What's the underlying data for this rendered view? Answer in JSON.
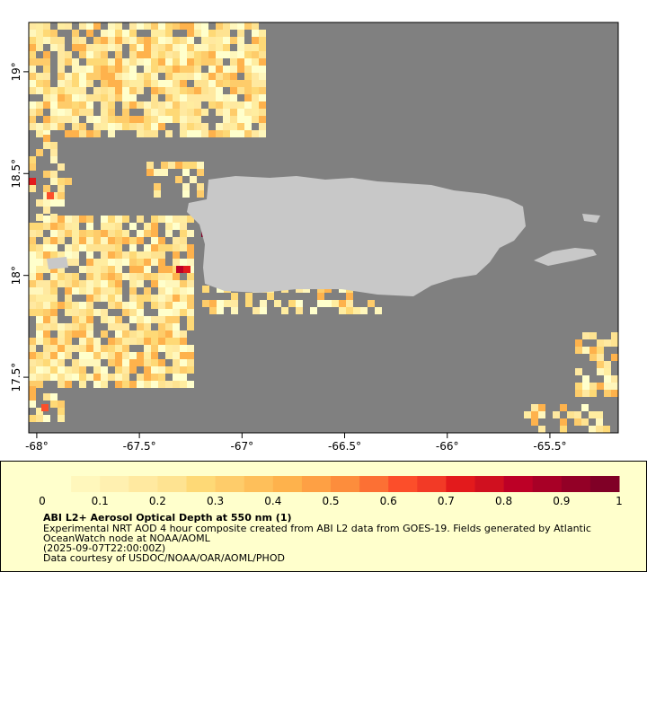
{
  "map": {
    "xlim": [
      -68.039,
      -65.167
    ],
    "ylim": [
      17.227,
      19.242
    ],
    "xticks": [
      {
        "value": -68,
        "label": "-68°"
      },
      {
        "value": -67.5,
        "label": "-67.5°"
      },
      {
        "value": -67,
        "label": "-67°"
      },
      {
        "value": -66.5,
        "label": "-66.5°"
      },
      {
        "value": -66,
        "label": "-66°"
      },
      {
        "value": -65.5,
        "label": "-65.5°"
      }
    ],
    "yticks": [
      {
        "value": 17.5,
        "label": "17.5°"
      },
      {
        "value": 18,
        "label": "18°"
      },
      {
        "value": 18.5,
        "label": "18.5°"
      },
      {
        "value": 19,
        "label": "19°"
      }
    ]
  },
  "colorbar": {
    "ticks": [
      0,
      0.1,
      0.2,
      0.3,
      0.4,
      0.5,
      0.6,
      0.7,
      0.8,
      0.9,
      1
    ],
    "colors": [
      "#ffffcc",
      "#fff7bc",
      "#fff0b0",
      "#ffe9a0",
      "#fee391",
      "#fed976",
      "#fecc6a",
      "#febf5a",
      "#feb24c",
      "#fea044",
      "#fd8d3c",
      "#fc7034",
      "#fc4e2a",
      "#f23a26",
      "#e31a1c",
      "#d0101f",
      "#bd0026",
      "#a80026",
      "#930026",
      "#800026"
    ]
  },
  "caption": {
    "title": "ABI L2+ Aerosol Optical Depth at 550 nm (1)",
    "lines": [
      "Experimental NRT AOD 4 hour composite created from ABI L2 data from GOES-19. Fields generated by Atlantic",
      "OceanWatch node at NOAA/AOML",
      "(2025-09-07T22:00:00Z)",
      "Data courtesy of USDOC/NOAA/OAR/AOML/PHOD"
    ]
  }
}
